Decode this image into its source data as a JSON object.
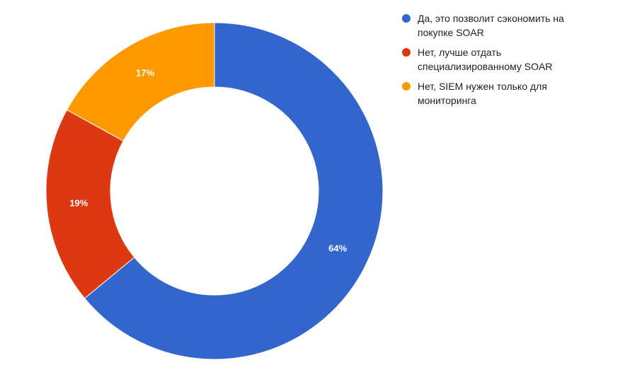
{
  "chart_data": {
    "type": "donut",
    "categories": [
      "Да, это позволит сэкономить на покупке SOAR",
      "Нет, лучше отдать специализированному SOAR",
      "Нет, SIEM нужен только для мониторинга"
    ],
    "values": [
      64,
      19,
      17
    ],
    "value_labels": [
      "64%",
      "19%",
      "17%"
    ],
    "colors": [
      "#3366cc",
      "#dc3912",
      "#ff9900"
    ],
    "legend": "right"
  }
}
